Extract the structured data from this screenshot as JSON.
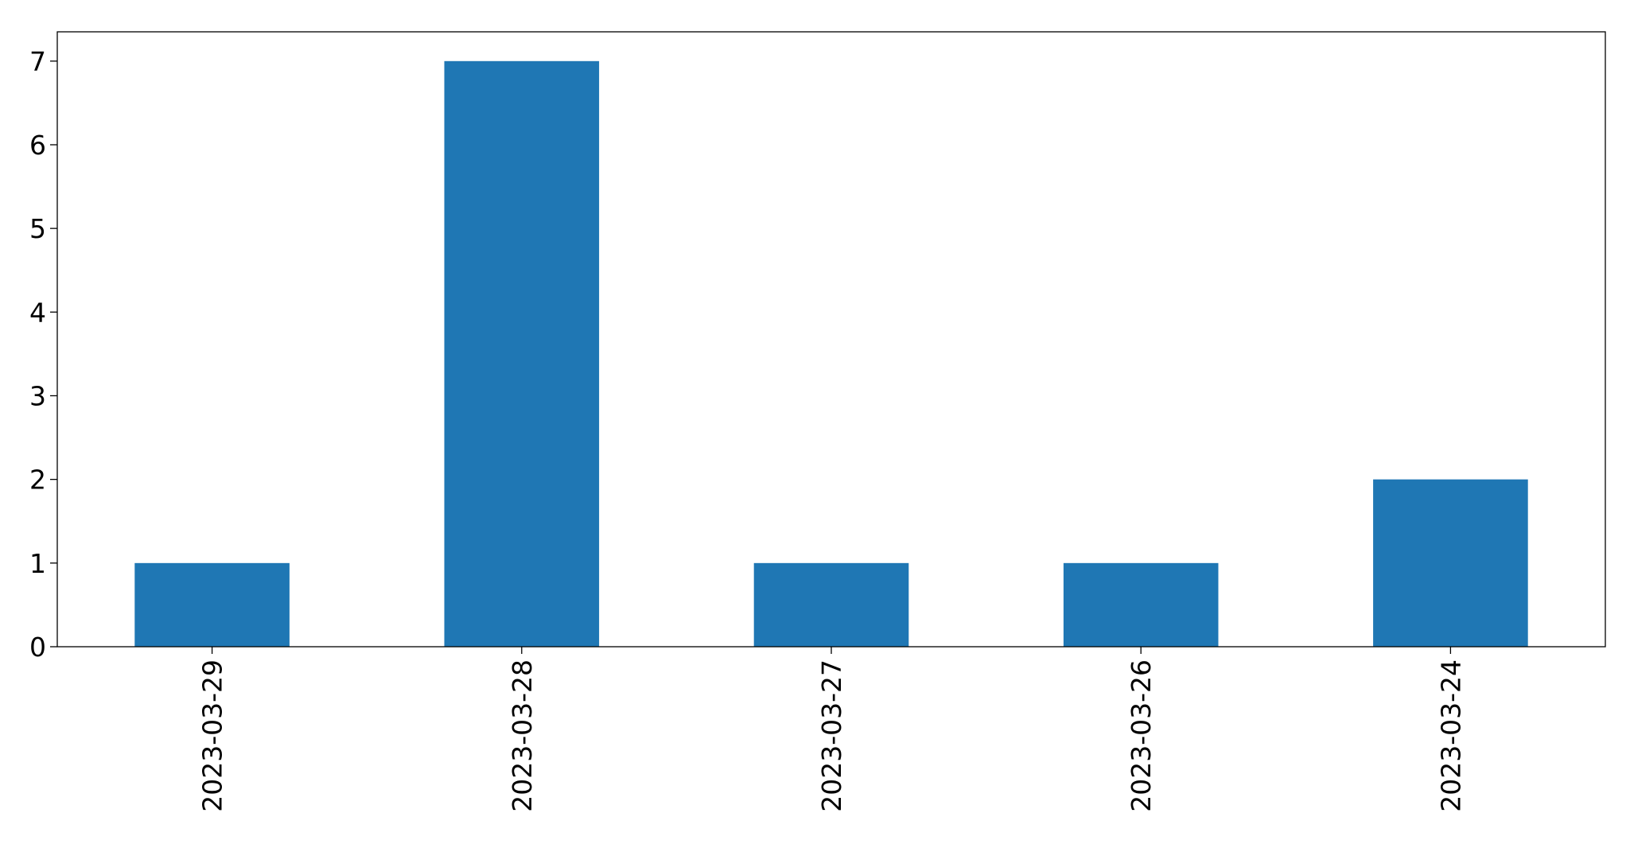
{
  "chart_data": {
    "type": "bar",
    "categories": [
      "2023-03-29",
      "2023-03-28",
      "2023-03-27",
      "2023-03-26",
      "2023-03-24"
    ],
    "values": [
      1,
      7,
      1,
      1,
      2
    ],
    "title": "",
    "xlabel": "",
    "ylabel": "",
    "ylim": [
      0,
      7.35
    ],
    "yticks": [
      0,
      1,
      2,
      3,
      4,
      5,
      6,
      7
    ],
    "bar_color": "#1f77b4",
    "grid": false,
    "legend": "none"
  }
}
